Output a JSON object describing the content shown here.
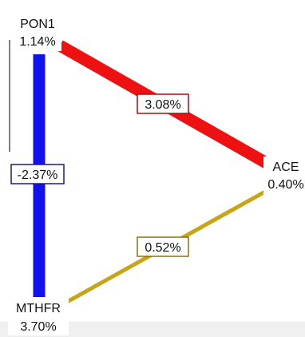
{
  "nodes": {
    "pon1": {
      "name": "PON1",
      "value": "1.14%"
    },
    "ace": {
      "name": "ACE",
      "value": "0.40%"
    },
    "mthfr": {
      "name": "MTHFR",
      "value": "3.70%"
    }
  },
  "edges": {
    "pon1_ace": {
      "label": "3.08%",
      "color": "#ee1111"
    },
    "pon1_mthfr": {
      "label": "-2.37%",
      "color": "#1111ee"
    },
    "mthfr_ace": {
      "label": "0.52%",
      "color": "#c9a417"
    }
  }
}
